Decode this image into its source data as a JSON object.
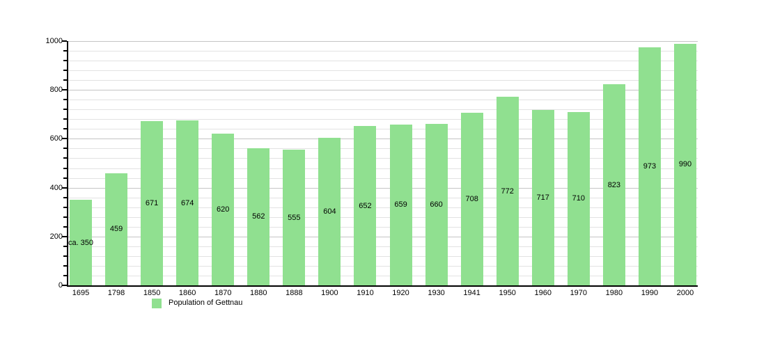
{
  "chart_data": {
    "type": "bar",
    "title": "",
    "xlabel": "",
    "ylabel": "",
    "categories": [
      "1695",
      "1798",
      "1850",
      "1860",
      "1870",
      "1880",
      "1888",
      "1900",
      "1910",
      "1920",
      "1930",
      "1941",
      "1950",
      "1960",
      "1970",
      "1980",
      "1990",
      "2000"
    ],
    "values": [
      350,
      459,
      671,
      674,
      620,
      562,
      555,
      604,
      652,
      659,
      660,
      708,
      772,
      717,
      710,
      823,
      973,
      990
    ],
    "bar_labels": [
      "ca. 350",
      "459",
      "671",
      "674",
      "620",
      "562",
      "555",
      "604",
      "652",
      "659",
      "660",
      "708",
      "772",
      "717",
      "710",
      "823",
      "973",
      "990"
    ],
    "ylim": [
      0,
      1000
    ],
    "y_major_step": 200,
    "y_minor_step": 40,
    "y_major_ticks": [
      "0",
      "200",
      "400",
      "600",
      "800",
      "1000"
    ],
    "grid": "horizontal",
    "legend": {
      "position": "bottom-left",
      "entries": [
        {
          "label": "Population of Gettnau",
          "swatch_color": "#90e090"
        }
      ]
    }
  },
  "colors": {
    "bar": "#90e090",
    "grid_major": "#c4c4c4",
    "grid_minor": "#e2e2e2",
    "axis": "#000000",
    "text": "#000000",
    "background": "#ffffff"
  }
}
